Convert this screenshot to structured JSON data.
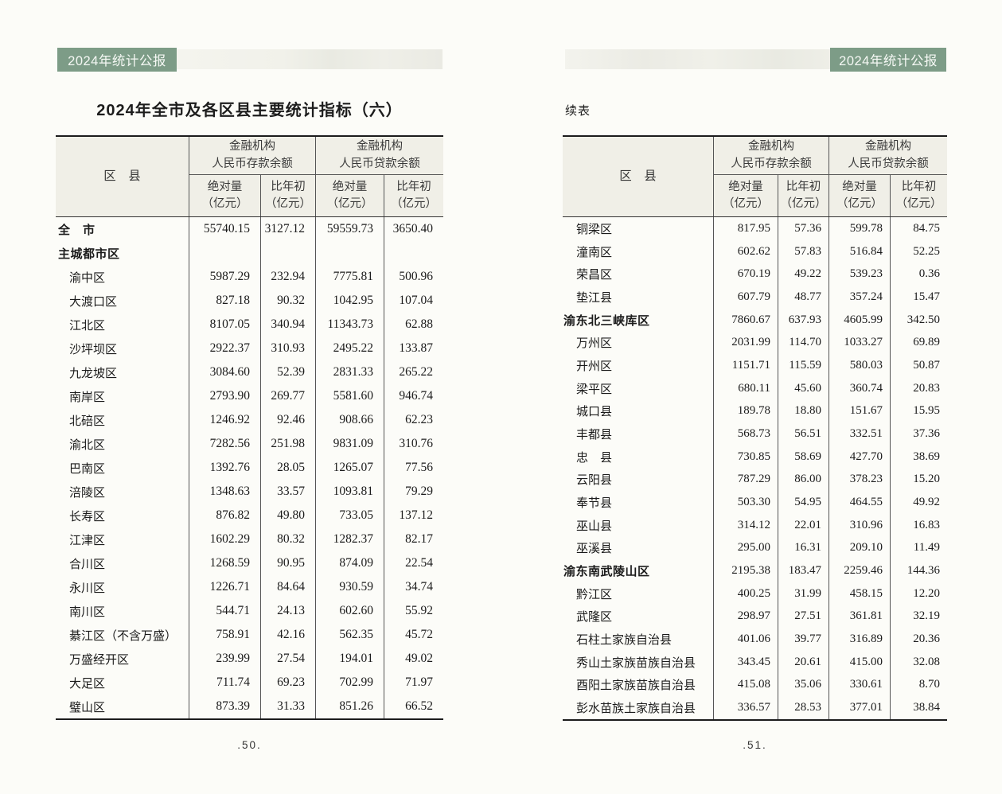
{
  "colors": {
    "accent_green": "#7d9c87",
    "header_bg": "#f0efe7",
    "page_bg": "#fcfcf8"
  },
  "banner": {
    "label": "2024年统计公报"
  },
  "table_headers": {
    "region": "区　县",
    "deposit_group": [
      "金融机构",
      "人民币存款余额"
    ],
    "loan_group": [
      "金融机构",
      "人民币贷款余额"
    ],
    "abs_label": [
      "绝对量",
      "（亿元）"
    ],
    "chg_label": [
      "比年初",
      "（亿元）"
    ]
  },
  "left_page": {
    "title": "2024年全市及各区县主要统计指标（六）",
    "page_number": ".50.",
    "rows": [
      {
        "name": "全　市",
        "bold": true,
        "values": [
          "55740.15",
          "3127.12",
          "59559.73",
          "3650.40"
        ]
      },
      {
        "name": "主城都市区",
        "bold": true,
        "values": [
          "",
          "",
          "",
          ""
        ]
      },
      {
        "name": "渝中区",
        "bold": false,
        "values": [
          "5987.29",
          "232.94",
          "7775.81",
          "500.96"
        ]
      },
      {
        "name": "大渡口区",
        "bold": false,
        "values": [
          "827.18",
          "90.32",
          "1042.95",
          "107.04"
        ]
      },
      {
        "name": "江北区",
        "bold": false,
        "values": [
          "8107.05",
          "340.94",
          "11343.73",
          "62.88"
        ]
      },
      {
        "name": "沙坪坝区",
        "bold": false,
        "values": [
          "2922.37",
          "310.93",
          "2495.22",
          "133.87"
        ]
      },
      {
        "name": "九龙坡区",
        "bold": false,
        "values": [
          "3084.60",
          "52.39",
          "2831.33",
          "265.22"
        ]
      },
      {
        "name": "南岸区",
        "bold": false,
        "values": [
          "2793.90",
          "269.77",
          "5581.60",
          "946.74"
        ]
      },
      {
        "name": "北碚区",
        "bold": false,
        "values": [
          "1246.92",
          "92.46",
          "908.66",
          "62.23"
        ]
      },
      {
        "name": "渝北区",
        "bold": false,
        "values": [
          "7282.56",
          "251.98",
          "9831.09",
          "310.76"
        ]
      },
      {
        "name": "巴南区",
        "bold": false,
        "values": [
          "1392.76",
          "28.05",
          "1265.07",
          "77.56"
        ]
      },
      {
        "name": "涪陵区",
        "bold": false,
        "values": [
          "1348.63",
          "33.57",
          "1093.81",
          "79.29"
        ]
      },
      {
        "name": "长寿区",
        "bold": false,
        "values": [
          "876.82",
          "49.80",
          "733.05",
          "137.12"
        ]
      },
      {
        "name": "江津区",
        "bold": false,
        "values": [
          "1602.29",
          "80.32",
          "1282.37",
          "82.17"
        ]
      },
      {
        "name": "合川区",
        "bold": false,
        "values": [
          "1268.59",
          "90.95",
          "874.09",
          "22.54"
        ]
      },
      {
        "name": "永川区",
        "bold": false,
        "values": [
          "1226.71",
          "84.64",
          "930.59",
          "34.74"
        ]
      },
      {
        "name": "南川区",
        "bold": false,
        "values": [
          "544.71",
          "24.13",
          "602.60",
          "55.92"
        ]
      },
      {
        "name": "綦江区（不含万盛）",
        "bold": false,
        "values": [
          "758.91",
          "42.16",
          "562.35",
          "45.72"
        ]
      },
      {
        "name": "万盛经开区",
        "bold": false,
        "values": [
          "239.99",
          "27.54",
          "194.01",
          "49.02"
        ]
      },
      {
        "name": "大足区",
        "bold": false,
        "values": [
          "711.74",
          "69.23",
          "702.99",
          "71.97"
        ]
      },
      {
        "name": "璧山区",
        "bold": false,
        "values": [
          "873.39",
          "31.33",
          "851.26",
          "66.52"
        ]
      }
    ]
  },
  "right_page": {
    "continued_label": "续表",
    "page_number": ".51.",
    "rows": [
      {
        "name": "铜梁区",
        "bold": false,
        "values": [
          "817.95",
          "57.36",
          "599.78",
          "84.75"
        ]
      },
      {
        "name": "潼南区",
        "bold": false,
        "values": [
          "602.62",
          "57.83",
          "516.84",
          "52.25"
        ]
      },
      {
        "name": "荣昌区",
        "bold": false,
        "values": [
          "670.19",
          "49.22",
          "539.23",
          "0.36"
        ]
      },
      {
        "name": "垫江县",
        "bold": false,
        "values": [
          "607.79",
          "48.77",
          "357.24",
          "15.47"
        ]
      },
      {
        "name": "渝东北三峡库区",
        "bold": true,
        "values": [
          "7860.67",
          "637.93",
          "4605.99",
          "342.50"
        ]
      },
      {
        "name": "万州区",
        "bold": false,
        "values": [
          "2031.99",
          "114.70",
          "1033.27",
          "69.89"
        ]
      },
      {
        "name": "开州区",
        "bold": false,
        "values": [
          "1151.71",
          "115.59",
          "580.03",
          "50.87"
        ]
      },
      {
        "name": "梁平区",
        "bold": false,
        "values": [
          "680.11",
          "45.60",
          "360.74",
          "20.83"
        ]
      },
      {
        "name": "城口县",
        "bold": false,
        "values": [
          "189.78",
          "18.80",
          "151.67",
          "15.95"
        ]
      },
      {
        "name": "丰都县",
        "bold": false,
        "values": [
          "568.73",
          "56.51",
          "332.51",
          "37.36"
        ]
      },
      {
        "name": "忠　县",
        "bold": false,
        "values": [
          "730.85",
          "58.69",
          "427.70",
          "38.69"
        ]
      },
      {
        "name": "云阳县",
        "bold": false,
        "values": [
          "787.29",
          "86.00",
          "378.23",
          "15.20"
        ]
      },
      {
        "name": "奉节县",
        "bold": false,
        "values": [
          "503.30",
          "54.95",
          "464.55",
          "49.92"
        ]
      },
      {
        "name": "巫山县",
        "bold": false,
        "values": [
          "314.12",
          "22.01",
          "310.96",
          "16.83"
        ]
      },
      {
        "name": "巫溪县",
        "bold": false,
        "values": [
          "295.00",
          "16.31",
          "209.10",
          "11.49"
        ]
      },
      {
        "name": "渝东南武陵山区",
        "bold": true,
        "values": [
          "2195.38",
          "183.47",
          "2259.46",
          "144.36"
        ]
      },
      {
        "name": "黔江区",
        "bold": false,
        "values": [
          "400.25",
          "31.99",
          "458.15",
          "12.20"
        ]
      },
      {
        "name": "武隆区",
        "bold": false,
        "values": [
          "298.97",
          "27.51",
          "361.81",
          "32.19"
        ]
      },
      {
        "name": "石柱土家族自治县",
        "bold": false,
        "values": [
          "401.06",
          "39.77",
          "316.89",
          "20.36"
        ]
      },
      {
        "name": "秀山土家族苗族自治县",
        "bold": false,
        "values": [
          "343.45",
          "20.61",
          "415.00",
          "32.08"
        ]
      },
      {
        "name": "酉阳土家族苗族自治县",
        "bold": false,
        "values": [
          "415.08",
          "35.06",
          "330.61",
          "8.70"
        ]
      },
      {
        "name": "彭水苗族土家族自治县",
        "bold": false,
        "values": [
          "336.57",
          "28.53",
          "377.01",
          "38.84"
        ]
      }
    ]
  }
}
